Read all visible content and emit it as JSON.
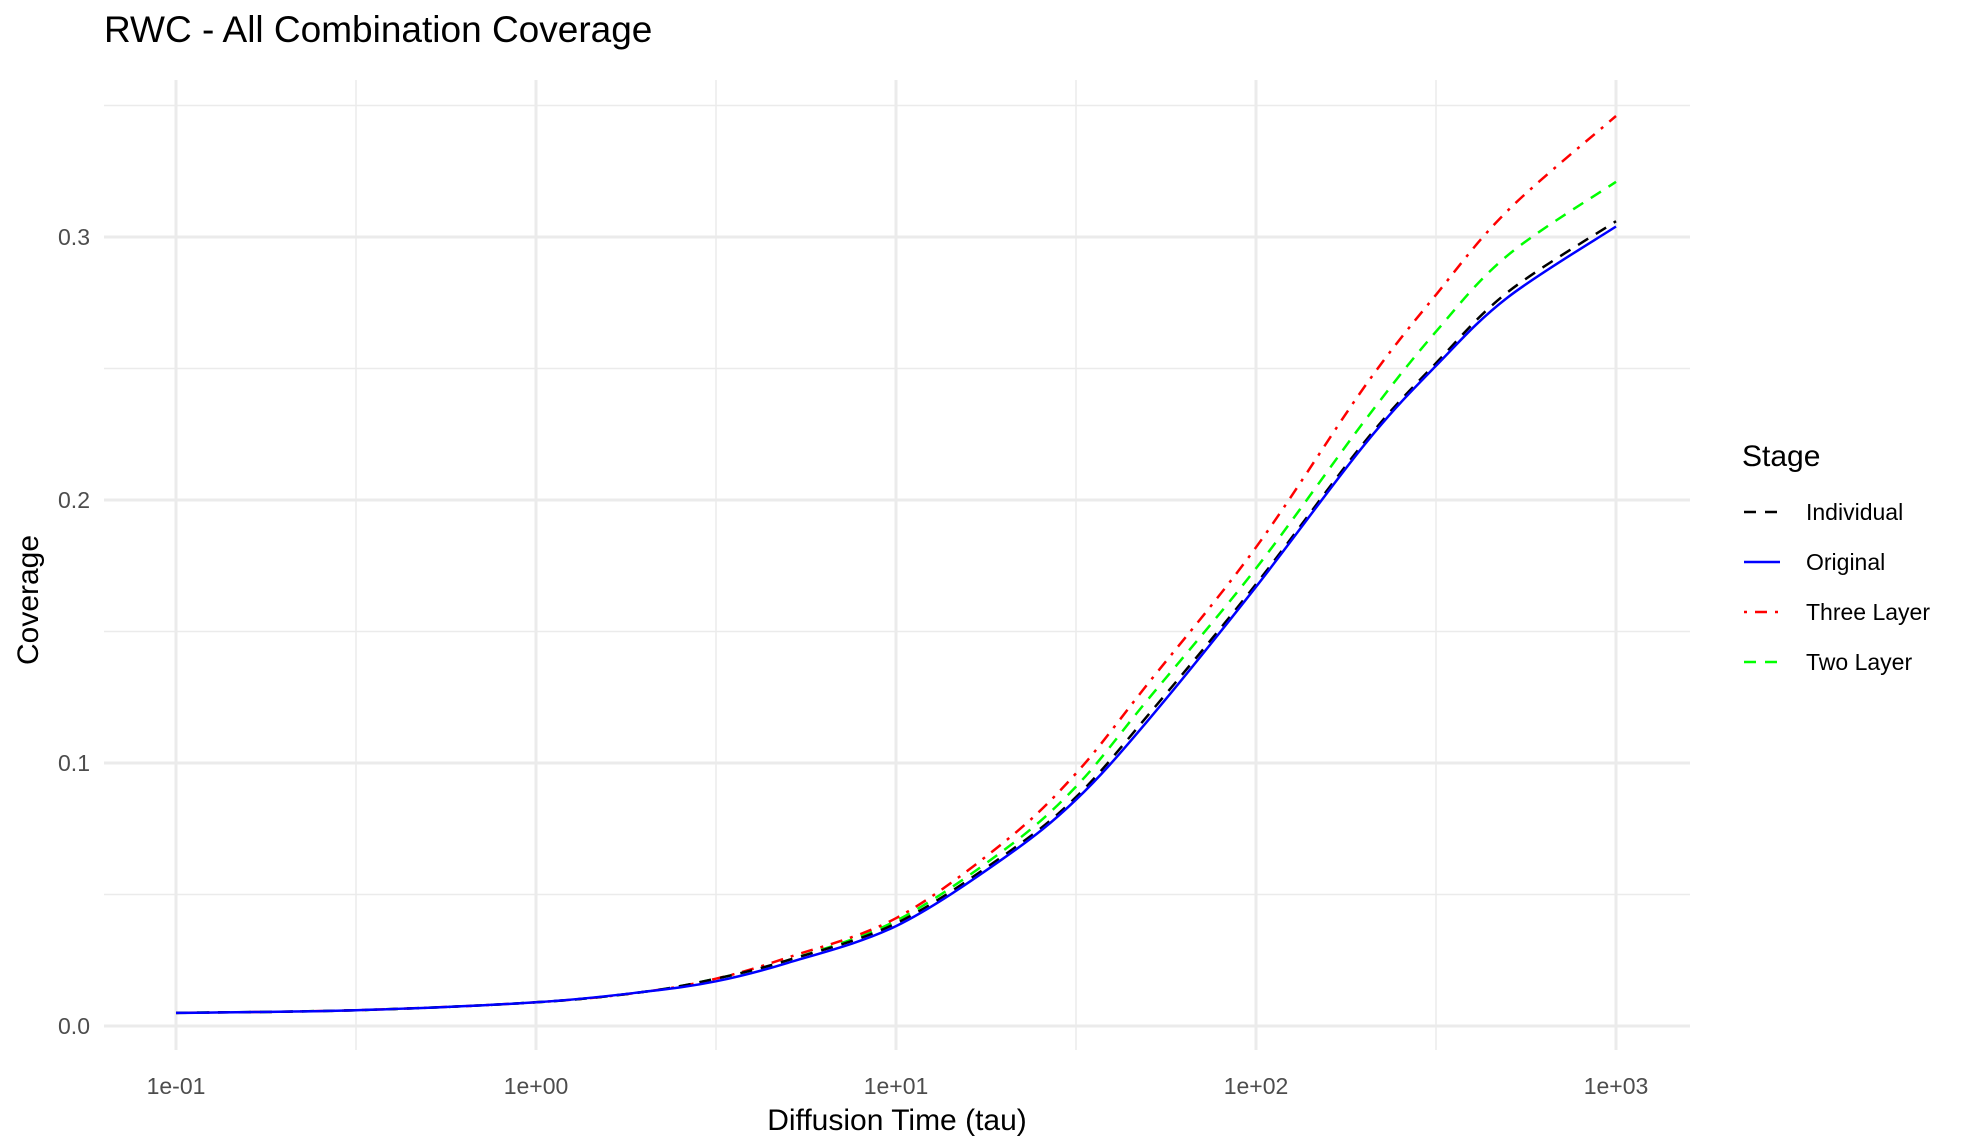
{
  "chart_data": {
    "type": "line",
    "title": "RWC - All Combination Coverage",
    "xlabel": "Diffusion Time (tau)",
    "ylabel": "Coverage",
    "x_scale": "log10",
    "xlim": [
      0.1,
      1000
    ],
    "ylim": [
      0,
      0.35
    ],
    "x_ticks": [
      0.1,
      1,
      10,
      100,
      1000
    ],
    "x_tick_labels": [
      "1e-01",
      "1e+00",
      "1e+01",
      "1e+02",
      "1e+03"
    ],
    "y_ticks": [
      0,
      0.1,
      0.2,
      0.3
    ],
    "y_tick_labels": [
      "0.0",
      "0.1",
      "0.2",
      "0.3"
    ],
    "grid": true,
    "legend": {
      "title": "Stage",
      "position": "right"
    },
    "x": [
      0.1,
      0.316,
      1,
      2,
      3.16,
      5,
      10,
      20,
      31.6,
      50,
      100,
      200,
      316,
      500,
      1000
    ],
    "series": [
      {
        "name": "Individual",
        "color": "#000000",
        "dash": "dashed",
        "values": [
          0.005,
          0.006,
          0.009,
          0.013,
          0.018,
          0.025,
          0.039,
          0.065,
          0.087,
          0.118,
          0.168,
          0.222,
          0.252,
          0.279,
          0.306
        ]
      },
      {
        "name": "Original",
        "color": "#0000ff",
        "dash": "solid",
        "values": [
          0.005,
          0.006,
          0.009,
          0.013,
          0.017,
          0.024,
          0.038,
          0.064,
          0.086,
          0.116,
          0.167,
          0.221,
          0.251,
          0.277,
          0.304
        ]
      },
      {
        "name": "Three Layer",
        "color": "#ff0000",
        "dash": "dotdash",
        "values": [
          0.005,
          0.006,
          0.009,
          0.013,
          0.018,
          0.026,
          0.041,
          0.07,
          0.096,
          0.13,
          0.182,
          0.243,
          0.278,
          0.31,
          0.346
        ]
      },
      {
        "name": "Two Layer",
        "color": "#00ff00",
        "dash": "dashed",
        "values": [
          0.005,
          0.006,
          0.009,
          0.013,
          0.018,
          0.025,
          0.04,
          0.067,
          0.091,
          0.124,
          0.174,
          0.23,
          0.264,
          0.293,
          0.321
        ]
      }
    ]
  }
}
